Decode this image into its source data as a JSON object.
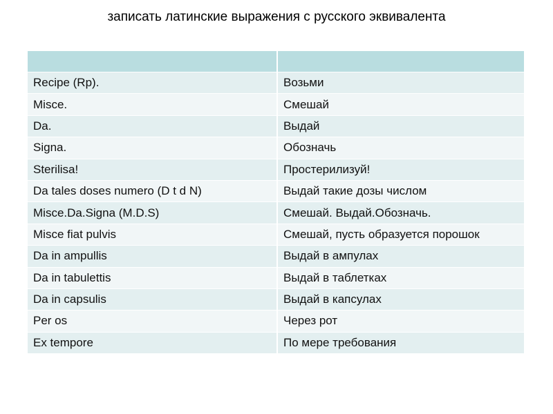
{
  "title": "записать латинские выражения с русского эквивалента",
  "table": {
    "header": [
      "",
      ""
    ],
    "rows": [
      [
        "Recipe (Rp).",
        "Возьми"
      ],
      [
        "Misce.",
        "Смешай"
      ],
      [
        "Da.",
        "Выдай"
      ],
      [
        "Signa.",
        "Обозначь"
      ],
      [
        "Sterilisa!",
        "Простерилизуй!"
      ],
      [
        "Da tales doses numero (D t d N)",
        "Выдай такие дозы числом"
      ],
      [
        "Misce.Da.Signa (M.D.S)",
        "Смешай. Выдай.Обозначь."
      ],
      [
        "Misce fiat pulvis",
        "Смешай, пусть образуется порошок"
      ],
      [
        "Da in  ampullis",
        "Выдай в ампулах"
      ],
      [
        "Da in tabulettis",
        "Выдай в таблетках"
      ],
      [
        "Da in capsulis",
        "Выдай в капсулах"
      ],
      [
        "Per os",
        "Через рот"
      ],
      [
        "Ex tempore",
        "По мере требования"
      ]
    ]
  },
  "colors": {
    "header": "#b9dde0",
    "row_dark": "#e3eff0",
    "row_light": "#f1f6f7"
  }
}
